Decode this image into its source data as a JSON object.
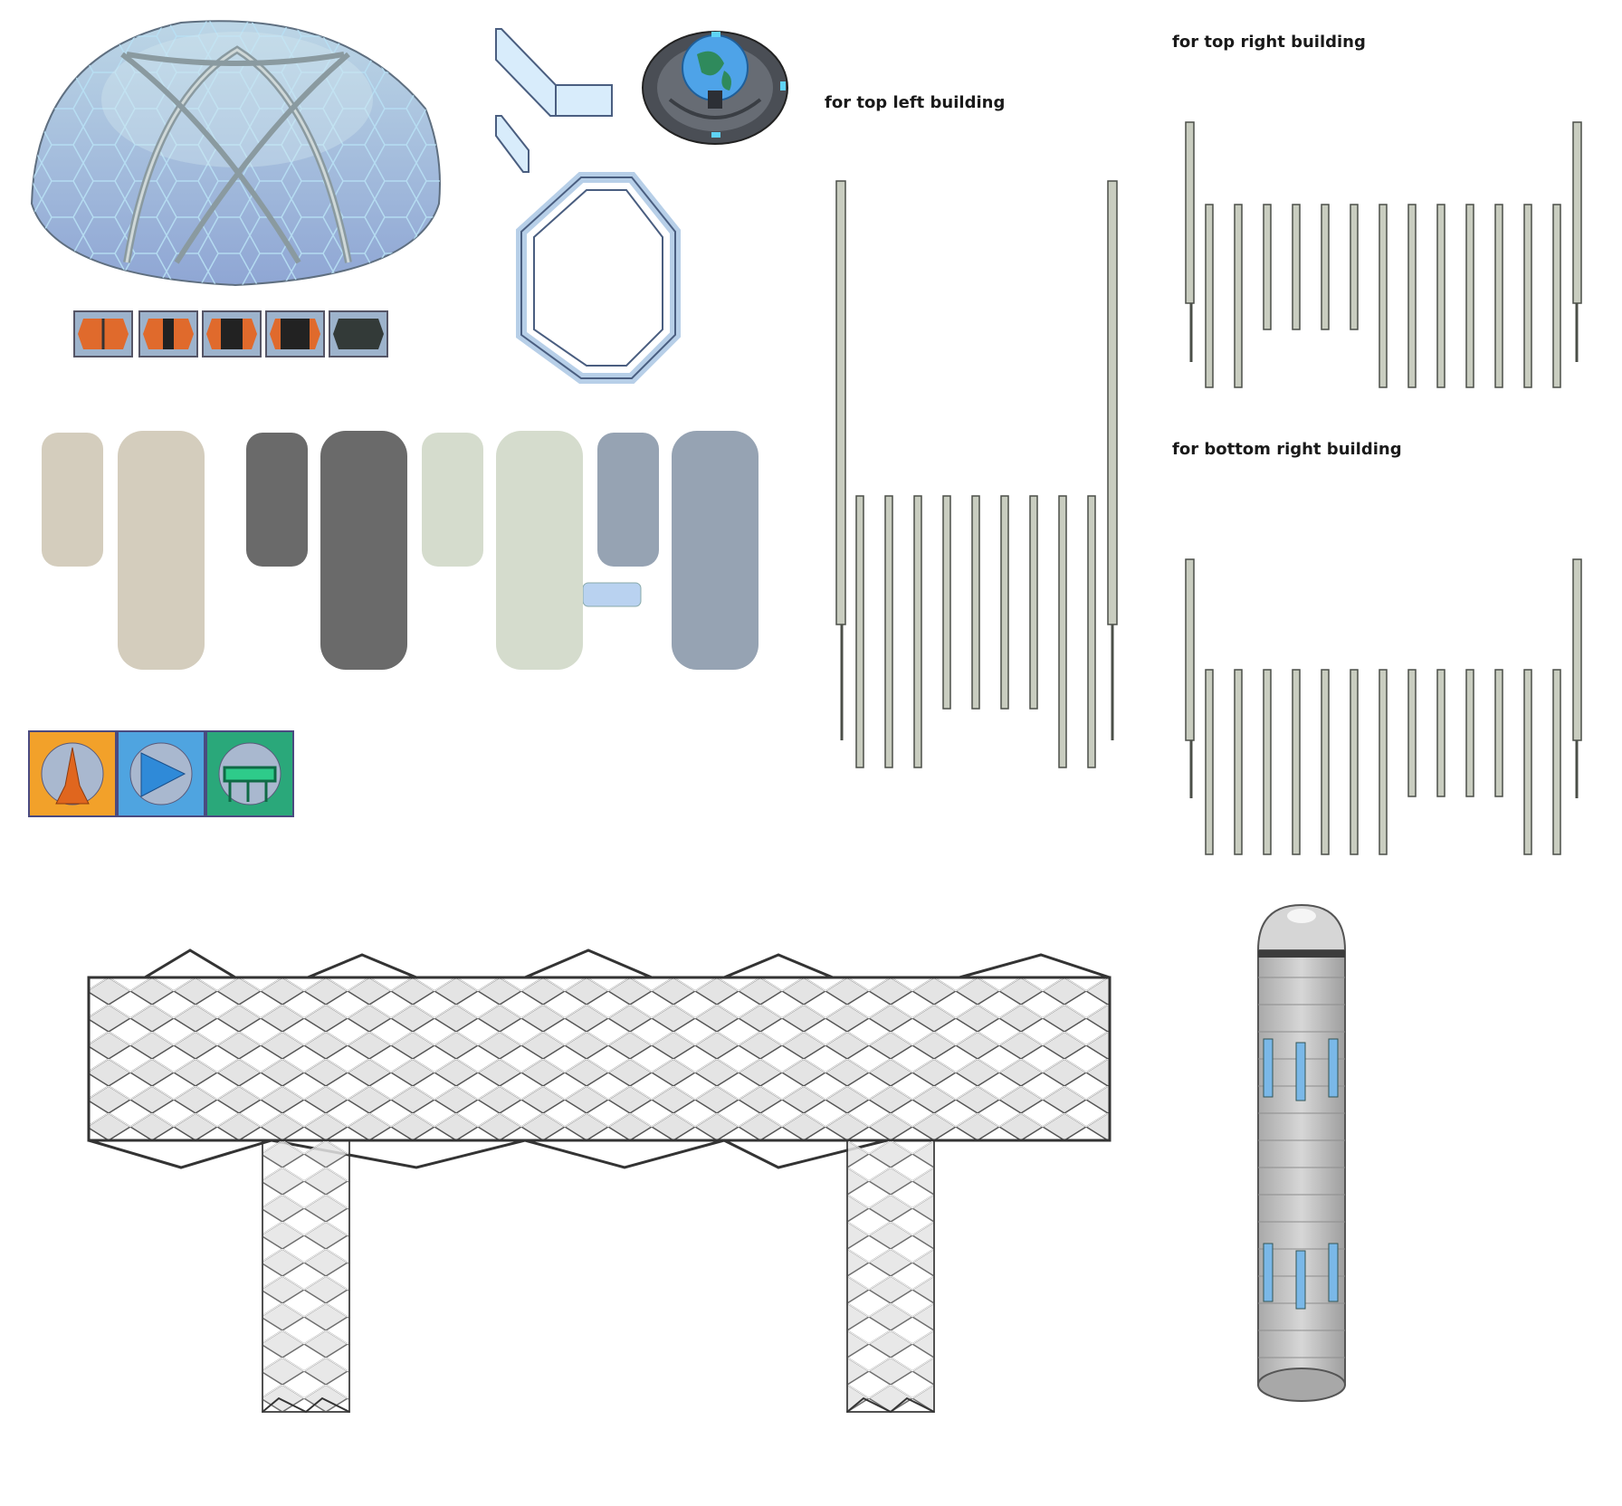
{
  "labels": {
    "top_left": "for top left building",
    "top_right": "for top right building",
    "bottom_right": "for bottom right building"
  },
  "colors": {
    "dome_glass": "#9fb8d8",
    "dome_frame": "#8a9aa0",
    "door_orange": "#e06a2c",
    "slab_beige": "#d4cdbd",
    "slab_dark": "#6a6a6a",
    "slab_mint": "#d5dccd",
    "slab_steel": "#96a3b3",
    "pillar": "#c9cdc0",
    "tile_orange": "#f2a12a",
    "tile_blue": "#4fa4e0",
    "tile_green": "#2aa87a"
  },
  "icons": {
    "tile_1": "eiffel-tower-icon",
    "tile_2": "pyramid-icon",
    "tile_3": "tree-bridge-icon"
  }
}
